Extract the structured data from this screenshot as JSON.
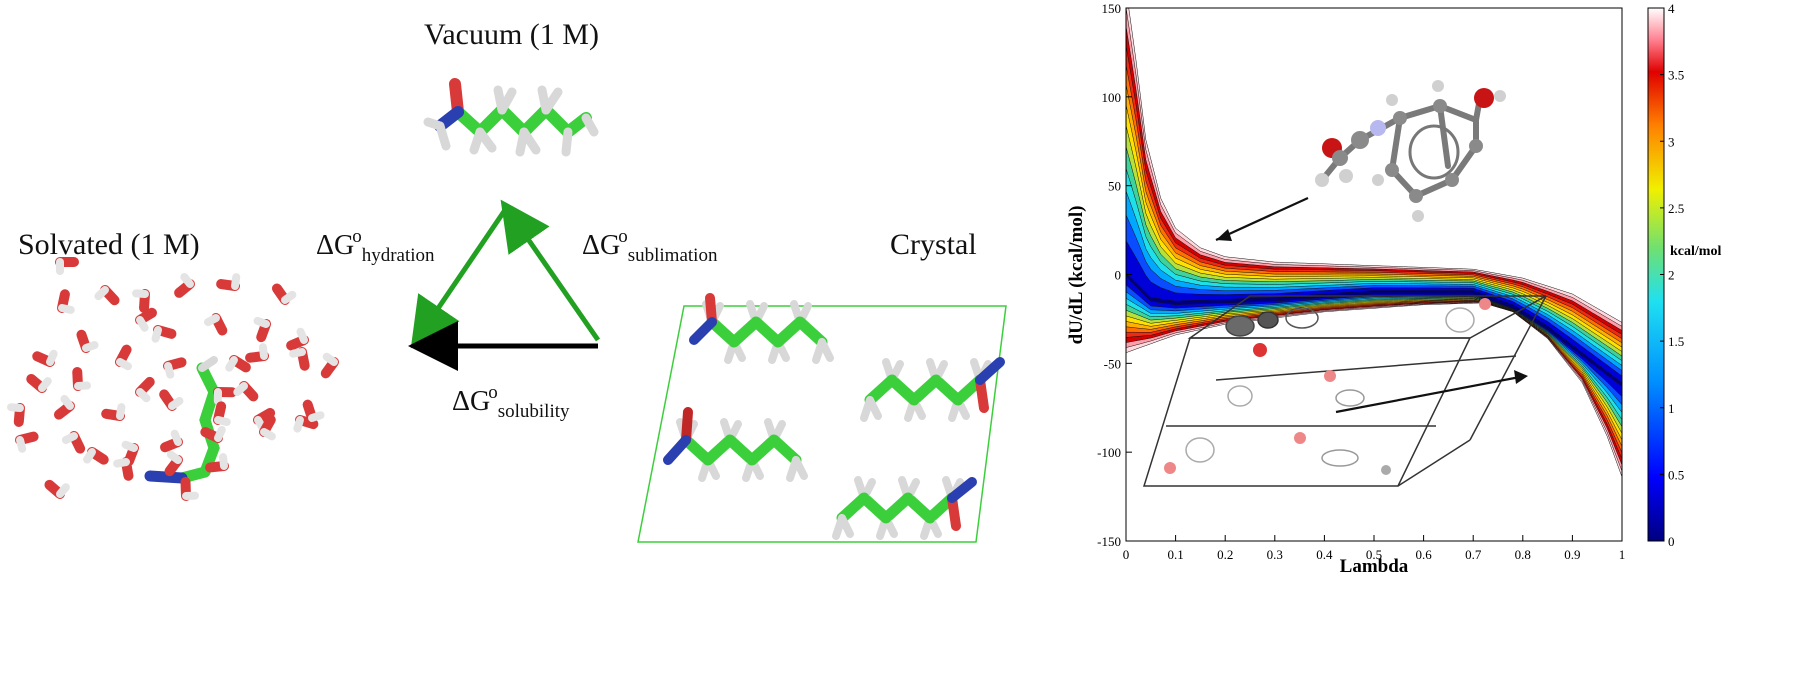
{
  "left_panel": {
    "vacuum_label": "Vacuum (1 M)",
    "solvated_label": "Solvated (1 M)",
    "crystal_label": "Crystal",
    "hydration": {
      "delta": "ΔG",
      "sup": "o",
      "sub": "hydration"
    },
    "sublimation": {
      "delta": "ΔG",
      "sup": "o",
      "sub": "sublimation"
    },
    "solubility": {
      "delta": "ΔG",
      "sup": "o",
      "sub": "solubility"
    },
    "colors": {
      "carbon": "#3ccf3c",
      "oxygen": "#d83a3a",
      "nitrogen": "#2a3fb0",
      "hydrogen": "#e6e6e6",
      "triangle_green": "#22a022",
      "triangle_black": "#000000"
    }
  },
  "chart_data": {
    "type": "heatmap",
    "xlabel": "Lambda",
    "ylabel": "dU/dL (kcal/mol)",
    "xlim": [
      0,
      1
    ],
    "ylim": [
      -150,
      150
    ],
    "x_ticks": [
      "0",
      "0.1",
      "0.2",
      "0.3",
      "0.4",
      "0.5",
      "0.6",
      "0.7",
      "0.8",
      "0.9",
      "1"
    ],
    "y_ticks": [
      "150",
      "100",
      "50",
      "0",
      "-50",
      "-100",
      "-150"
    ],
    "colorbar_label": "kcal/mol",
    "colorbar_range": [
      0,
      4
    ],
    "colorbar_ticks": [
      "4",
      "3.5",
      "3",
      "2.5",
      "2",
      "1.5",
      "1",
      "0.5",
      "0"
    ],
    "upper_envelope": [
      [
        0.005,
        150
      ],
      [
        0.02,
        120
      ],
      [
        0.04,
        75
      ],
      [
        0.07,
        42
      ],
      [
        0.1,
        25
      ],
      [
        0.15,
        14
      ],
      [
        0.2,
        9
      ],
      [
        0.3,
        6
      ],
      [
        0.5,
        4
      ],
      [
        0.7,
        2
      ],
      [
        0.8,
        -3
      ],
      [
        0.9,
        -12
      ],
      [
        0.95,
        -20
      ],
      [
        1.0,
        -28
      ]
    ],
    "lower_envelope": [
      [
        0.0,
        -43
      ],
      [
        0.05,
        -38
      ],
      [
        0.1,
        -33
      ],
      [
        0.2,
        -27
      ],
      [
        0.4,
        -20
      ],
      [
        0.6,
        -16
      ],
      [
        0.72,
        -15
      ],
      [
        0.78,
        -20
      ],
      [
        0.85,
        -35
      ],
      [
        0.92,
        -60
      ],
      [
        0.97,
        -90
      ],
      [
        1.0,
        -113
      ]
    ],
    "minimum_ridge": [
      [
        0.0,
        0
      ],
      [
        0.05,
        -14
      ],
      [
        0.1,
        -16
      ],
      [
        0.3,
        -14
      ],
      [
        0.5,
        -10
      ],
      [
        0.7,
        -10
      ],
      [
        0.78,
        -18
      ],
      [
        0.85,
        -30
      ],
      [
        0.92,
        -45
      ],
      [
        1.0,
        -62
      ]
    ],
    "grid": false,
    "legend": "none",
    "colormap": [
      "#00007f",
      "#0000d8",
      "#0a4cff",
      "#00a8ff",
      "#1fe0e8",
      "#3fd29a",
      "#b8e03a",
      "#ffe000",
      "#ffb000",
      "#ff7000",
      "#f02a10",
      "#d40000",
      "#ff9da8",
      "#ffd8de"
    ]
  }
}
